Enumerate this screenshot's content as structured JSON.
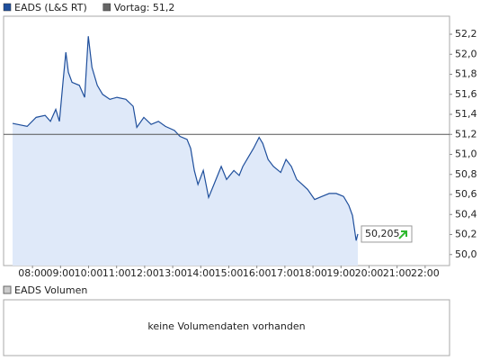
{
  "chart_data": {
    "type": "line",
    "legend": [
      {
        "label": "EADS (L&S RT)",
        "color": "#1f4f9c"
      },
      {
        "label": "Vortag: 51,2",
        "color": "#666666"
      }
    ],
    "reference_line": {
      "value": 51.2,
      "color": "#555555"
    },
    "series": [
      {
        "name": "EADS (L&S RT)",
        "color": "#1f4f9c",
        "fill": "#dfe9f9",
        "x": [
          7.29,
          7.81,
          8.13,
          8.45,
          8.64,
          8.83,
          8.96,
          9.09,
          9.19,
          9.28,
          9.41,
          9.67,
          9.86,
          9.99,
          10.12,
          10.31,
          10.5,
          10.76,
          11.01,
          11.33,
          11.59,
          11.72,
          11.97,
          12.23,
          12.49,
          12.74,
          13.06,
          13.26,
          13.51,
          13.64,
          13.77,
          13.9,
          14.09,
          14.28,
          14.47,
          14.73,
          14.92,
          15.18,
          15.37,
          15.5,
          15.69,
          15.88,
          16.08,
          16.21,
          16.4,
          16.59,
          16.85,
          17.04,
          17.23,
          17.42,
          17.62,
          17.81,
          18.06,
          18.32,
          18.58,
          18.83,
          19.09,
          19.28,
          19.41,
          19.54,
          19.6
        ],
        "values": [
          51.31,
          51.28,
          51.37,
          51.39,
          51.33,
          51.45,
          51.33,
          51.73,
          52.02,
          51.82,
          51.72,
          51.69,
          51.57,
          52.18,
          51.87,
          51.69,
          51.6,
          51.55,
          51.57,
          51.55,
          51.48,
          51.27,
          51.37,
          51.3,
          51.33,
          51.28,
          51.24,
          51.18,
          51.15,
          51.06,
          50.84,
          50.7,
          50.84,
          50.57,
          50.7,
          50.88,
          50.75,
          50.84,
          50.79,
          50.88,
          50.97,
          51.06,
          51.17,
          51.11,
          50.95,
          50.88,
          50.82,
          50.95,
          50.88,
          50.75,
          50.7,
          50.65,
          50.55,
          50.58,
          50.61,
          50.61,
          50.58,
          50.49,
          50.39,
          50.14,
          50.205
        ]
      }
    ],
    "last_value_label": "50,205",
    "xlim": [
      6.97,
      22.87
    ],
    "xticks": [
      {
        "value": 8,
        "label": "08:00"
      },
      {
        "value": 9,
        "label": "09:00"
      },
      {
        "value": 10,
        "label": "10:00"
      },
      {
        "value": 11,
        "label": "11:00"
      },
      {
        "value": 12,
        "label": "12:00"
      },
      {
        "value": 13,
        "label": "13:00"
      },
      {
        "value": 14,
        "label": "14:00"
      },
      {
        "value": 15,
        "label": "15:00"
      },
      {
        "value": 16,
        "label": "16:00"
      },
      {
        "value": 17,
        "label": "17:00"
      },
      {
        "value": 18,
        "label": "18:00"
      },
      {
        "value": 19,
        "label": "19:00"
      },
      {
        "value": 20,
        "label": "20:00"
      },
      {
        "value": 21,
        "label": "21:00"
      },
      {
        "value": 22,
        "label": "22:00"
      }
    ],
    "ylim": [
      49.89,
      52.38
    ],
    "yticks": [
      {
        "value": 50.0,
        "label": "50,0"
      },
      {
        "value": 50.2,
        "label": "50,2"
      },
      {
        "value": 50.4,
        "label": "50,4"
      },
      {
        "value": 50.6,
        "label": "50,6"
      },
      {
        "value": 50.8,
        "label": "50,8"
      },
      {
        "value": 51.0,
        "label": "51,0"
      },
      {
        "value": 51.2,
        "label": "51,2"
      },
      {
        "value": 51.4,
        "label": "51,4"
      },
      {
        "value": 51.6,
        "label": "51,6"
      },
      {
        "value": 51.8,
        "label": "51,8"
      },
      {
        "value": 52.0,
        "label": "52,0"
      },
      {
        "value": 52.2,
        "label": "52,2"
      }
    ],
    "volume_panel": {
      "legend": "EADS Volumen",
      "message": "keine Volumendaten vorhanden"
    }
  }
}
